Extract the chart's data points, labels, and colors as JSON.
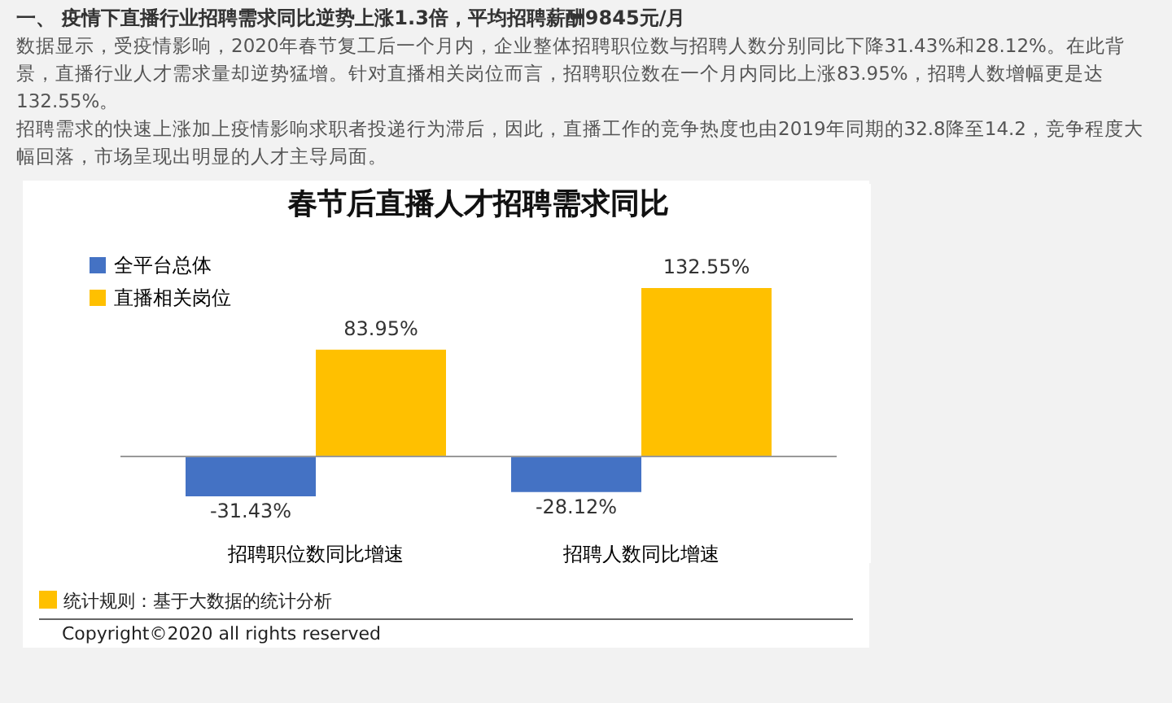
{
  "chart_data": {
    "type": "bar",
    "title": "春节后直播人才招聘需求同比",
    "categories": [
      "招聘职位数同比增速",
      "招聘人数同比增速"
    ],
    "series": [
      {
        "name": "全平台总体",
        "color": "#4472c4",
        "values": [
          -31.43,
          -28.12
        ],
        "value_labels": [
          "-31.43%",
          "-28.12%"
        ]
      },
      {
        "name": "直播相关岗位",
        "color": "#ffc000",
        "values": [
          83.95,
          132.55
        ],
        "value_labels": [
          "83.95%",
          "132.55%"
        ]
      }
    ],
    "legend": "top left",
    "grid": false,
    "annotations": [
      "一、 疫情下直播行业招聘需求同比逆势上涨1.3倍，平均招聘薪酬9845元/月",
      "数据显示，受疫情影响，2020年春节复工后一个月内，企业整体招聘职位数与招聘人数分别同比下降31.43%和28.12%。在此背景，直播行业人才需求量却逆势猛增。针对直播相关岗位而言，招聘职位数在一个月内同比上涨83.95%，招聘人数增幅更是达132.55%。",
      "招聘需求的快速上涨加上疫情影响求职者投递行为滞后，因此，直播工作的竞争热度也由2019年同期的32.8降至14.2，竞争程度大幅回落，市场呈现出明显的人才主导局面。",
      "统计规则：基于大数据的统计分析",
      "Copyright©2020 all rights reserved"
    ]
  }
}
